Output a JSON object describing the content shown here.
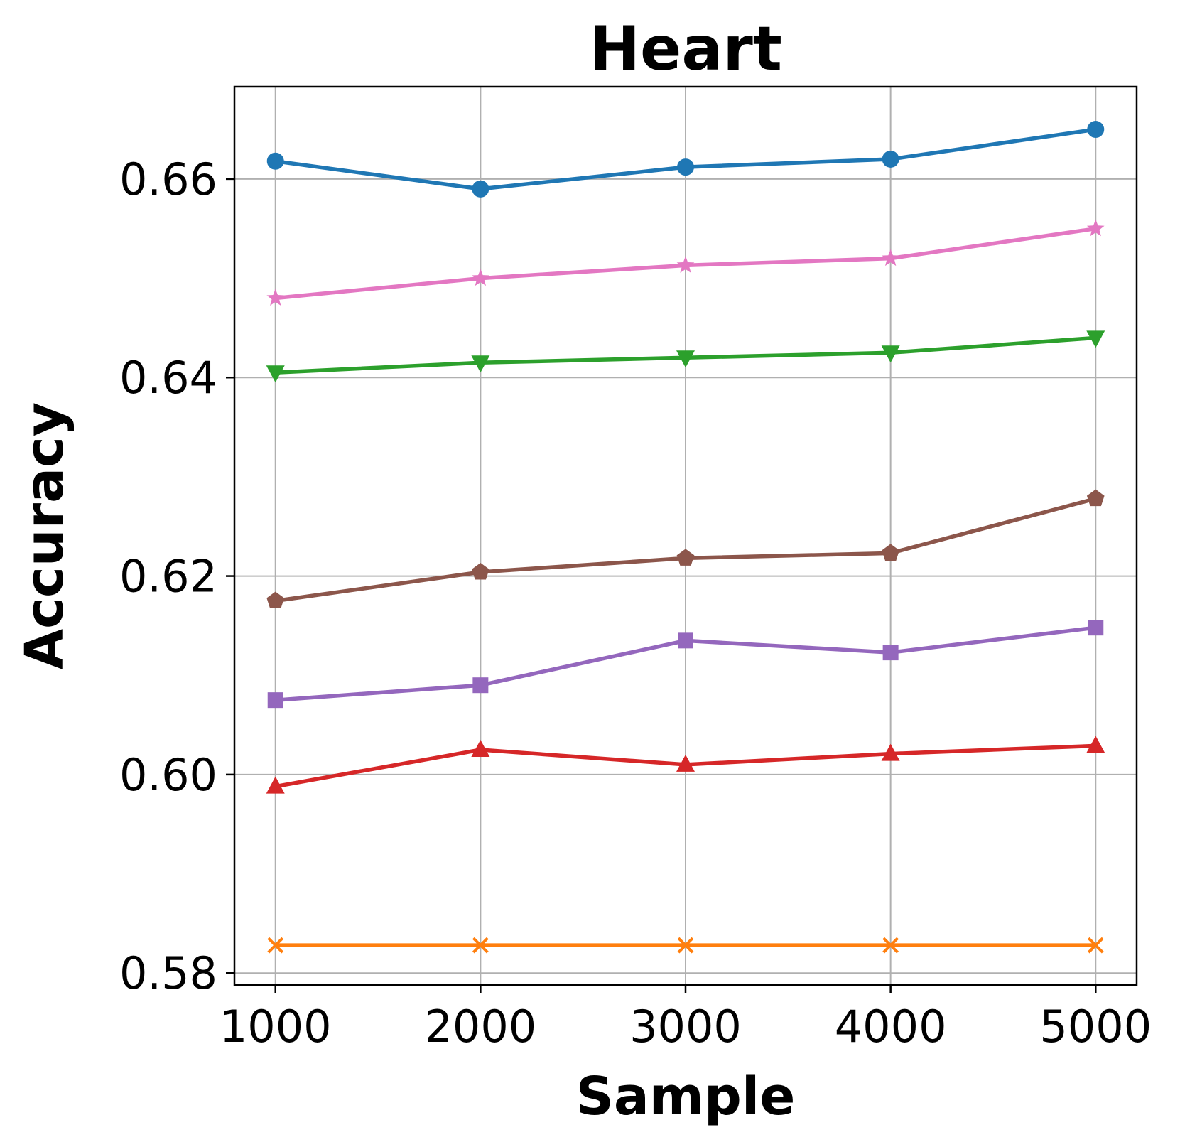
{
  "chart_data": {
    "type": "line",
    "title": "Heart",
    "xlabel": "Sample",
    "ylabel": "Accuracy",
    "x": [
      1000,
      2000,
      3000,
      4000,
      5000
    ],
    "xticks": [
      "1000",
      "2000",
      "3000",
      "4000",
      "5000"
    ],
    "yticks": [
      "0.58",
      "0.60",
      "0.62",
      "0.64",
      "0.66"
    ],
    "ytick_values": [
      0.58,
      0.6,
      0.62,
      0.64,
      0.66
    ],
    "xlim": [
      800,
      5200
    ],
    "ylim": [
      0.5788,
      0.6693
    ],
    "grid": true,
    "legend": "none",
    "series": [
      {
        "name": "series-blue",
        "color": "#1f77b4",
        "marker": "circle",
        "values": [
          0.6618,
          0.659,
          0.6612,
          0.662,
          0.665
        ]
      },
      {
        "name": "series-pink",
        "color": "#e377c2",
        "marker": "star",
        "values": [
          0.648,
          0.65,
          0.6513,
          0.652,
          0.655
        ]
      },
      {
        "name": "series-green",
        "color": "#2ca02c",
        "marker": "triangle-down",
        "values": [
          0.6405,
          0.6415,
          0.642,
          0.6425,
          0.644
        ]
      },
      {
        "name": "series-brown",
        "color": "#8c564b",
        "marker": "pentagon",
        "values": [
          0.6175,
          0.6204,
          0.6218,
          0.6223,
          0.6278
        ]
      },
      {
        "name": "series-purple",
        "color": "#9467bd",
        "marker": "square",
        "values": [
          0.6075,
          0.609,
          0.6135,
          0.6123,
          0.6148
        ]
      },
      {
        "name": "series-red",
        "color": "#d62728",
        "marker": "triangle-up",
        "values": [
          0.5988,
          0.6025,
          0.601,
          0.6021,
          0.6029
        ]
      },
      {
        "name": "series-orange",
        "color": "#ff7f0e",
        "marker": "x",
        "values": [
          0.5828,
          0.5828,
          0.5828,
          0.5828,
          0.5828
        ]
      }
    ]
  }
}
